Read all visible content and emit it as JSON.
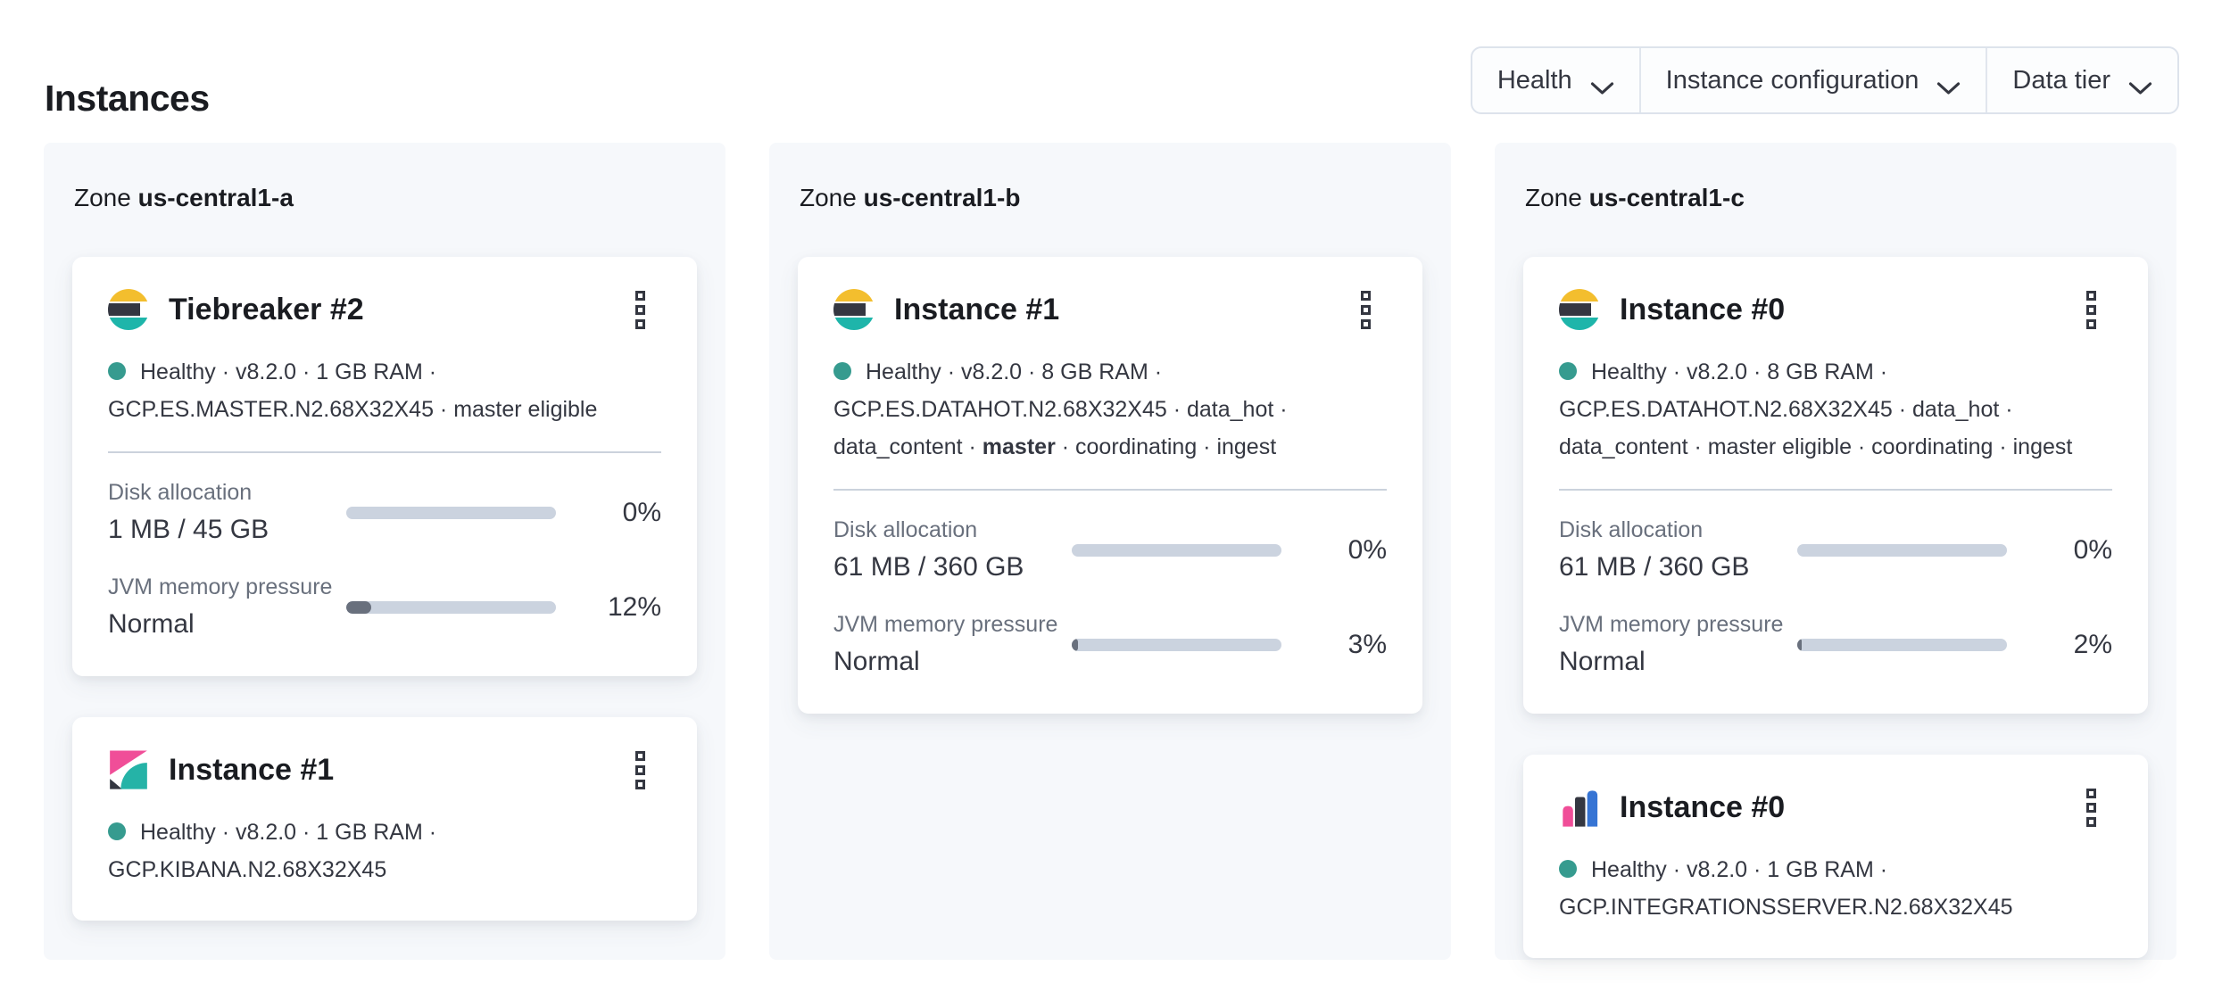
{
  "page": {
    "title": "Instances"
  },
  "filter_bar": {
    "items": [
      {
        "label": "Health",
        "icon": "chevron-down-icon"
      },
      {
        "label": "Instance configuration",
        "icon": "chevron-down-icon"
      },
      {
        "label": "Data tier",
        "icon": "chevron-down-icon"
      }
    ]
  },
  "colors": {
    "health_dot": "#369b8f",
    "bar_track": "#cbd3df",
    "bar_fill": "#69707d",
    "elastic_yellow": "#f3be2e",
    "elastic_teal": "#1eb5aa",
    "elastic_dark": "#343741",
    "kibana_pink": "#f04e98",
    "integrations_blue": "#3674d4",
    "zone_panel_bg": "#f6f8fb"
  },
  "zones": [
    {
      "label": "Zone",
      "name": "us-central1-a",
      "cards": [
        {
          "icon": "elasticsearch-logo-icon",
          "title": "Tiebreaker #2",
          "menu_icon": "boxes-vertical-icon",
          "meta": {
            "line1": "Healthy · v8.2.0 · 1 GB RAM ·",
            "line2": "GCP.ES.MASTER.N2.68X32X45 · master eligible"
          },
          "metrics": {
            "disk": {
              "label": "Disk allocation",
              "value": "1 MB / 45 GB",
              "percent_label": "0%",
              "fill_percent": 0
            },
            "jvm": {
              "label": "JVM memory pressure",
              "value": "Normal",
              "percent_label": "12%",
              "fill_percent": 12
            }
          }
        },
        {
          "icon": "kibana-logo-icon",
          "title": "Instance #1",
          "menu_icon": "boxes-vertical-icon",
          "meta": {
            "line1": "Healthy · v8.2.0 · 1 GB RAM ·",
            "line2": "GCP.KIBANA.N2.68X32X45"
          }
        }
      ]
    },
    {
      "label": "Zone",
      "name": "us-central1-b",
      "cards": [
        {
          "icon": "elasticsearch-logo-icon",
          "title": "Instance #1",
          "menu_icon": "boxes-vertical-icon",
          "meta": {
            "line1": "Healthy · v8.2.0 · 8 GB RAM ·",
            "line2": "GCP.ES.DATAHOT.N2.68X32X45 · data_hot ·",
            "line3_pre": "data_content ·",
            "line3_bold": "master",
            "line3_post": "· coordinating · ingest"
          },
          "metrics": {
            "disk": {
              "label": "Disk allocation",
              "value": "61 MB / 360 GB",
              "percent_label": "0%",
              "fill_percent": 0
            },
            "jvm": {
              "label": "JVM memory pressure",
              "value": "Normal",
              "percent_label": "3%",
              "fill_percent": 3
            }
          }
        }
      ]
    },
    {
      "label": "Zone",
      "name": "us-central1-c",
      "cards": [
        {
          "icon": "elasticsearch-logo-icon",
          "title": "Instance #0",
          "menu_icon": "boxes-vertical-icon",
          "meta": {
            "line1": "Healthy · v8.2.0 · 8 GB RAM ·",
            "line2": "GCP.ES.DATAHOT.N2.68X32X45 · data_hot ·",
            "line3": "data_content · master eligible · coordinating · ingest"
          },
          "metrics": {
            "disk": {
              "label": "Disk allocation",
              "value": "61 MB / 360 GB",
              "percent_label": "0%",
              "fill_percent": 0
            },
            "jvm": {
              "label": "JVM memory pressure",
              "value": "Normal",
              "percent_label": "2%",
              "fill_percent": 2
            }
          }
        },
        {
          "icon": "integrations-server-logo-icon",
          "title": "Instance #0",
          "menu_icon": "boxes-vertical-icon",
          "meta": {
            "line1": "Healthy · v8.2.0 · 1 GB RAM ·",
            "line2": "GCP.INTEGRATIONSSERVER.N2.68X32X45"
          }
        }
      ]
    }
  ]
}
